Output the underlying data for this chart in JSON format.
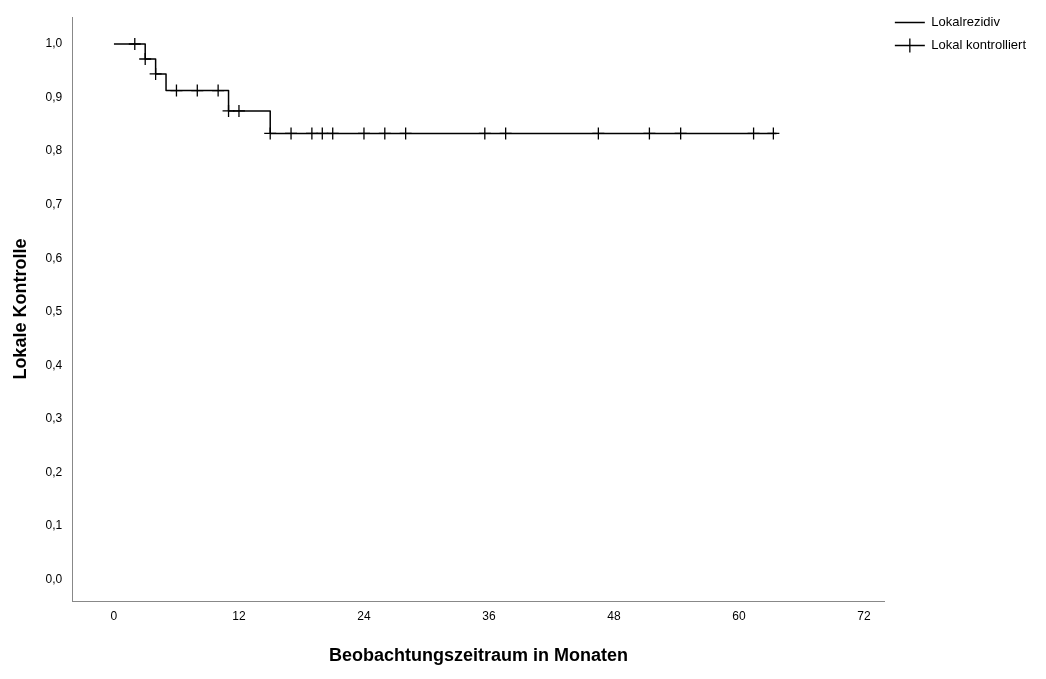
{
  "chart_data": {
    "type": "step",
    "xlabel": "Beobachtungszeitraum in Monaten",
    "ylabel": "Lokale Kontrolle",
    "xlim": [
      -4,
      74
    ],
    "xticks": [
      0,
      12,
      24,
      36,
      48,
      60,
      72
    ],
    "ylim": [
      -0.04,
      1.05
    ],
    "yticks": [
      {
        "value": 0,
        "label": "0,0"
      },
      {
        "value": 0.1,
        "label": "0,1"
      },
      {
        "value": 0.2,
        "label": "0,2"
      },
      {
        "value": 0.3,
        "label": "0,3"
      },
      {
        "value": 0.4,
        "label": "0,4"
      },
      {
        "value": 0.5,
        "label": "0,5"
      },
      {
        "value": 0.6,
        "label": "0,6"
      },
      {
        "value": 0.7,
        "label": "0,7"
      },
      {
        "value": 0.8,
        "label": "0,8"
      },
      {
        "value": 0.9,
        "label": "0,9"
      },
      {
        "value": 1,
        "label": "1,0"
      }
    ],
    "grid": false,
    "legend": "top right",
    "line_style": "solid",
    "series": [
      {
        "name": "Lokalrezidiv",
        "color": "#000000",
        "marker": "none",
        "x": [
          0,
          3,
          4,
          5,
          11,
          15,
          63.6
        ],
        "values": [
          1,
          0.972,
          0.944,
          0.913,
          0.875,
          0.833,
          0.833
        ]
      },
      {
        "name": "Lokal kontrolliert",
        "type": "scatter",
        "color": "#000000",
        "marker": "cross",
        "x": [
          2,
          3,
          4,
          6,
          8,
          10,
          11,
          12,
          15,
          17,
          19,
          20,
          21,
          24,
          26,
          28,
          35.6,
          37.6,
          46.5,
          51.4,
          54.4,
          61.4,
          63.3
        ],
        "values": [
          1,
          0.972,
          0.944,
          0.913,
          0.913,
          0.913,
          0.875,
          0.875,
          0.833,
          0.833,
          0.833,
          0.833,
          0.833,
          0.833,
          0.833,
          0.833,
          0.833,
          0.833,
          0.833,
          0.833,
          0.833,
          0.833,
          0.833
        ]
      }
    ]
  }
}
